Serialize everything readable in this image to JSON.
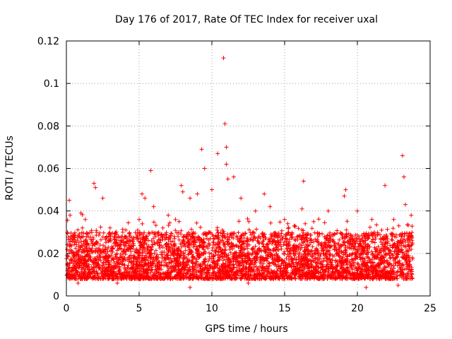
{
  "chart_data": {
    "type": "scatter",
    "title": "Day 176 of 2017, Rate Of TEC Index for receiver uxal",
    "xlabel": "GPS time / hours",
    "ylabel": "ROTI / TECUs",
    "xlim": [
      0,
      25
    ],
    "ylim": [
      0,
      0.12
    ],
    "x_ticks": [
      0,
      5,
      10,
      15,
      20,
      25
    ],
    "y_ticks": [
      0,
      0.02,
      0.04,
      0.06,
      0.08,
      0.1,
      0.12
    ],
    "x_tick_labels": [
      "0",
      "5",
      "10",
      "15",
      "20",
      "25"
    ],
    "y_tick_labels": [
      "0",
      "0.02",
      "0.04",
      "0.06",
      "0.08",
      "0.1",
      "0.12"
    ],
    "grid": true,
    "marker": "+",
    "color": "#ff0000",
    "data_range_x": [
      0,
      23.8
    ],
    "series": [
      {
        "name": "ROTI",
        "points": [
          [
            0.1,
            0.012
          ],
          [
            0.2,
            0.045
          ],
          [
            0.25,
            0.038
          ],
          [
            0.3,
            0.028
          ],
          [
            0.5,
            0.02
          ],
          [
            1.0,
            0.039
          ],
          [
            1.3,
            0.036
          ],
          [
            1.9,
            0.053
          ],
          [
            2.0,
            0.051
          ],
          [
            2.5,
            0.046
          ],
          [
            3.0,
            0.032
          ],
          [
            4.0,
            0.028
          ],
          [
            5.0,
            0.036
          ],
          [
            5.2,
            0.048
          ],
          [
            5.4,
            0.046
          ],
          [
            5.8,
            0.059
          ],
          [
            6.0,
            0.042
          ],
          [
            7.0,
            0.038
          ],
          [
            7.5,
            0.036
          ],
          [
            7.9,
            0.052
          ],
          [
            8.0,
            0.049
          ],
          [
            8.5,
            0.046
          ],
          [
            9.0,
            0.048
          ],
          [
            9.3,
            0.069
          ],
          [
            9.5,
            0.06
          ],
          [
            10.0,
            0.05
          ],
          [
            10.4,
            0.067
          ],
          [
            10.8,
            0.112
          ],
          [
            10.9,
            0.081
          ],
          [
            11.0,
            0.07
          ],
          [
            11.0,
            0.062
          ],
          [
            11.1,
            0.055
          ],
          [
            11.5,
            0.056
          ],
          [
            12.0,
            0.046
          ],
          [
            13.0,
            0.04
          ],
          [
            13.6,
            0.048
          ],
          [
            14.0,
            0.042
          ],
          [
            15.0,
            0.036
          ],
          [
            16.3,
            0.054
          ],
          [
            16.2,
            0.041
          ],
          [
            17.0,
            0.035
          ],
          [
            18.0,
            0.04
          ],
          [
            19.2,
            0.05
          ],
          [
            19.1,
            0.047
          ],
          [
            20.0,
            0.04
          ],
          [
            21.0,
            0.036
          ],
          [
            21.9,
            0.052
          ],
          [
            22.5,
            0.036
          ],
          [
            23.1,
            0.066
          ],
          [
            23.2,
            0.056
          ],
          [
            23.3,
            0.043
          ],
          [
            23.7,
            0.038
          ],
          [
            0.8,
            0.006
          ],
          [
            3.5,
            0.006
          ],
          [
            8.5,
            0.004
          ],
          [
            12.5,
            0.006
          ],
          [
            20.6,
            0.004
          ],
          [
            22.8,
            0.005
          ]
        ]
      }
    ]
  }
}
